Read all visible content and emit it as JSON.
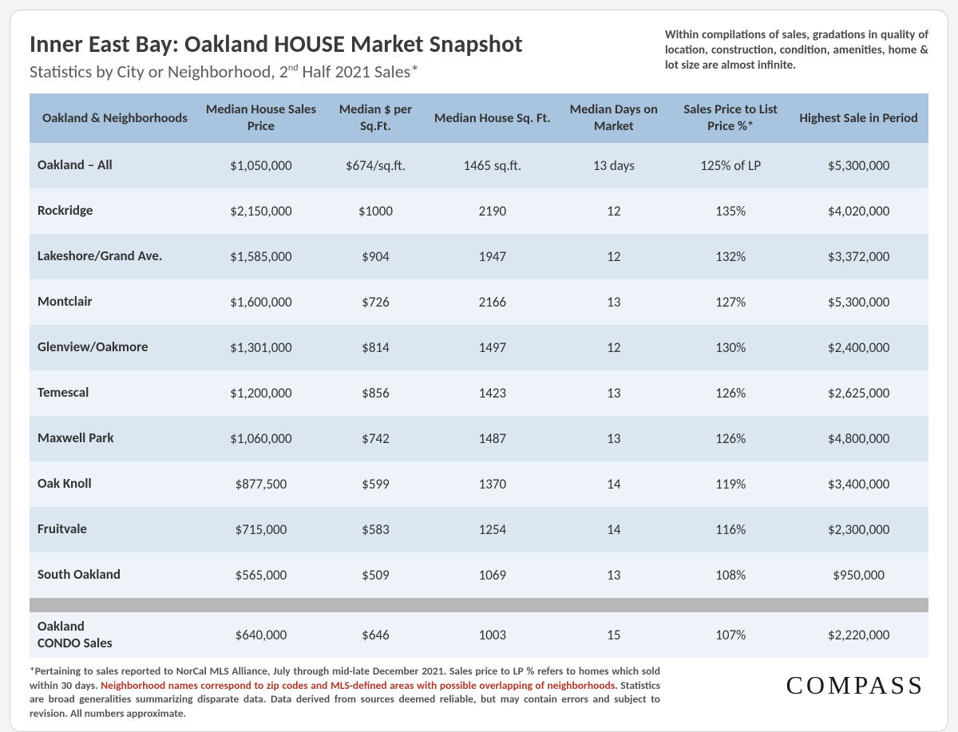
{
  "header": {
    "title": "Inner East Bay: Oakland HOUSE Market Snapshot",
    "subtitle_pre": "Statistics by City or Neighborhood, 2",
    "subtitle_sup": "nd",
    "subtitle_post": " Half 2021 Sales*",
    "note": "Within compilations of sales, gradations in quality of location, construction, condition, amenities, home & lot size are almost infinite."
  },
  "table": {
    "type": "table",
    "header_bg": "#a9c4de",
    "band_a_bg": "#dbe6f1",
    "band_b_bg": "#edf3f9",
    "separator_bg": "#b8b8b8",
    "columns": [
      "Oakland & Neighborhoods",
      "Median House Sales Price",
      "Median $ per Sq.Ft.",
      "Median House Sq. Ft.",
      "Median Days on Market",
      "Sales Price to List Price %*",
      "Highest Sale in Period"
    ],
    "rows": [
      {
        "name": "Oakland – All",
        "price": "$1,050,000",
        "psf": "$674/sq.ft.",
        "sqft": "1465 sq.ft.",
        "dom": "13 days",
        "splp": "125% of LP",
        "high": "$5,300,000"
      },
      {
        "name": "Rockridge",
        "price": "$2,150,000",
        "psf": "$1000",
        "sqft": "2190",
        "dom": "12",
        "splp": "135%",
        "high": "$4,020,000"
      },
      {
        "name": "Lakeshore/Grand Ave.",
        "price": "$1,585,000",
        "psf": "$904",
        "sqft": "1947",
        "dom": "12",
        "splp": "132%",
        "high": "$3,372,000"
      },
      {
        "name": "Montclair",
        "price": "$1,600,000",
        "psf": "$726",
        "sqft": "2166",
        "dom": "13",
        "splp": "127%",
        "high": "$5,300,000"
      },
      {
        "name": "Glenview/Oakmore",
        "price": "$1,301,000",
        "psf": "$814",
        "sqft": "1497",
        "dom": "12",
        "splp": "130%",
        "high": "$2,400,000"
      },
      {
        "name": "Temescal",
        "price": "$1,200,000",
        "psf": "$856",
        "sqft": "1423",
        "dom": "13",
        "splp": "126%",
        "high": "$2,625,000"
      },
      {
        "name": "Maxwell Park",
        "price": "$1,060,000",
        "psf": "$742",
        "sqft": "1487",
        "dom": "13",
        "splp": "126%",
        "high": "$4,800,000"
      },
      {
        "name": "Oak Knoll",
        "price": "$877,500",
        "psf": "$599",
        "sqft": "1370",
        "dom": "14",
        "splp": "119%",
        "high": "$3,400,000"
      },
      {
        "name": "Fruitvale",
        "price": "$715,000",
        "psf": "$583",
        "sqft": "1254",
        "dom": "14",
        "splp": "116%",
        "high": "$2,300,000"
      },
      {
        "name": "South Oakland",
        "price": "$565,000",
        "psf": "$509",
        "sqft": "1069",
        "dom": "13",
        "splp": "108%",
        "high": "$950,000"
      }
    ],
    "condo_row": {
      "name_line1": "Oakland",
      "name_line2": "CONDO Sales",
      "price": "$640,000",
      "psf": "$646",
      "sqft": "1003",
      "dom": "15",
      "splp": "107%",
      "high": "$2,220,000"
    }
  },
  "footer": {
    "text_a": "*Pertaining to sales reported to NorCal MLS Alliance, July through mid-late December 2021. Sales price to LP % refers to homes which sold within 30 days. ",
    "text_hl": "Neighborhood names correspond to zip codes and MLS-defined areas with possible overlapping of neighborhoods.",
    "text_b": " Statistics are broad generalities summarizing disparate data. Data derived from sources deemed reliable, but may contain errors and subject to revision. All numbers approximate.",
    "brand": "COMPASS"
  }
}
